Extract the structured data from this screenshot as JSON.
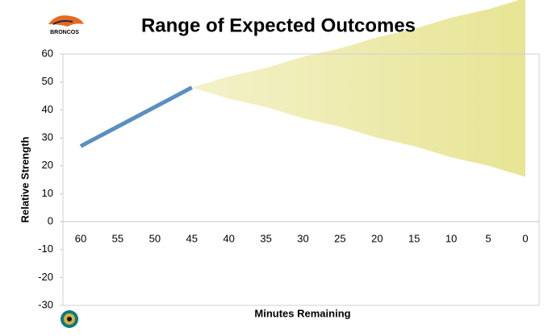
{
  "chart_data": {
    "type": "line",
    "title": "Range of Expected Outcomes",
    "x_label": "Minutes Remaining",
    "y_label": "Relative Strength",
    "logo_text": "BRONCOS",
    "categories": [
      "60",
      "55",
      "50",
      "45",
      "40",
      "35",
      "30",
      "25",
      "20",
      "15",
      "10",
      "5",
      "0"
    ],
    "series": [
      {
        "color": "#5b8fc0",
        "values": [
          27,
          34,
          41,
          48,
          null,
          null,
          null,
          null,
          null,
          null,
          null,
          null,
          null
        ]
      }
    ],
    "range": {
      "color": "#e6e38f",
      "upper": [
        null,
        null,
        null,
        48,
        52,
        55,
        59,
        62,
        66,
        69,
        73,
        76,
        80
      ],
      "lower": [
        null,
        null,
        null,
        48,
        44,
        41,
        37,
        34,
        30,
        27,
        23,
        20,
        16
      ]
    },
    "ylim": [
      -30,
      60
    ],
    "yticks": [
      -30,
      -20,
      -10,
      0,
      10,
      20,
      30,
      40,
      50,
      60
    ],
    "grid": false
  }
}
